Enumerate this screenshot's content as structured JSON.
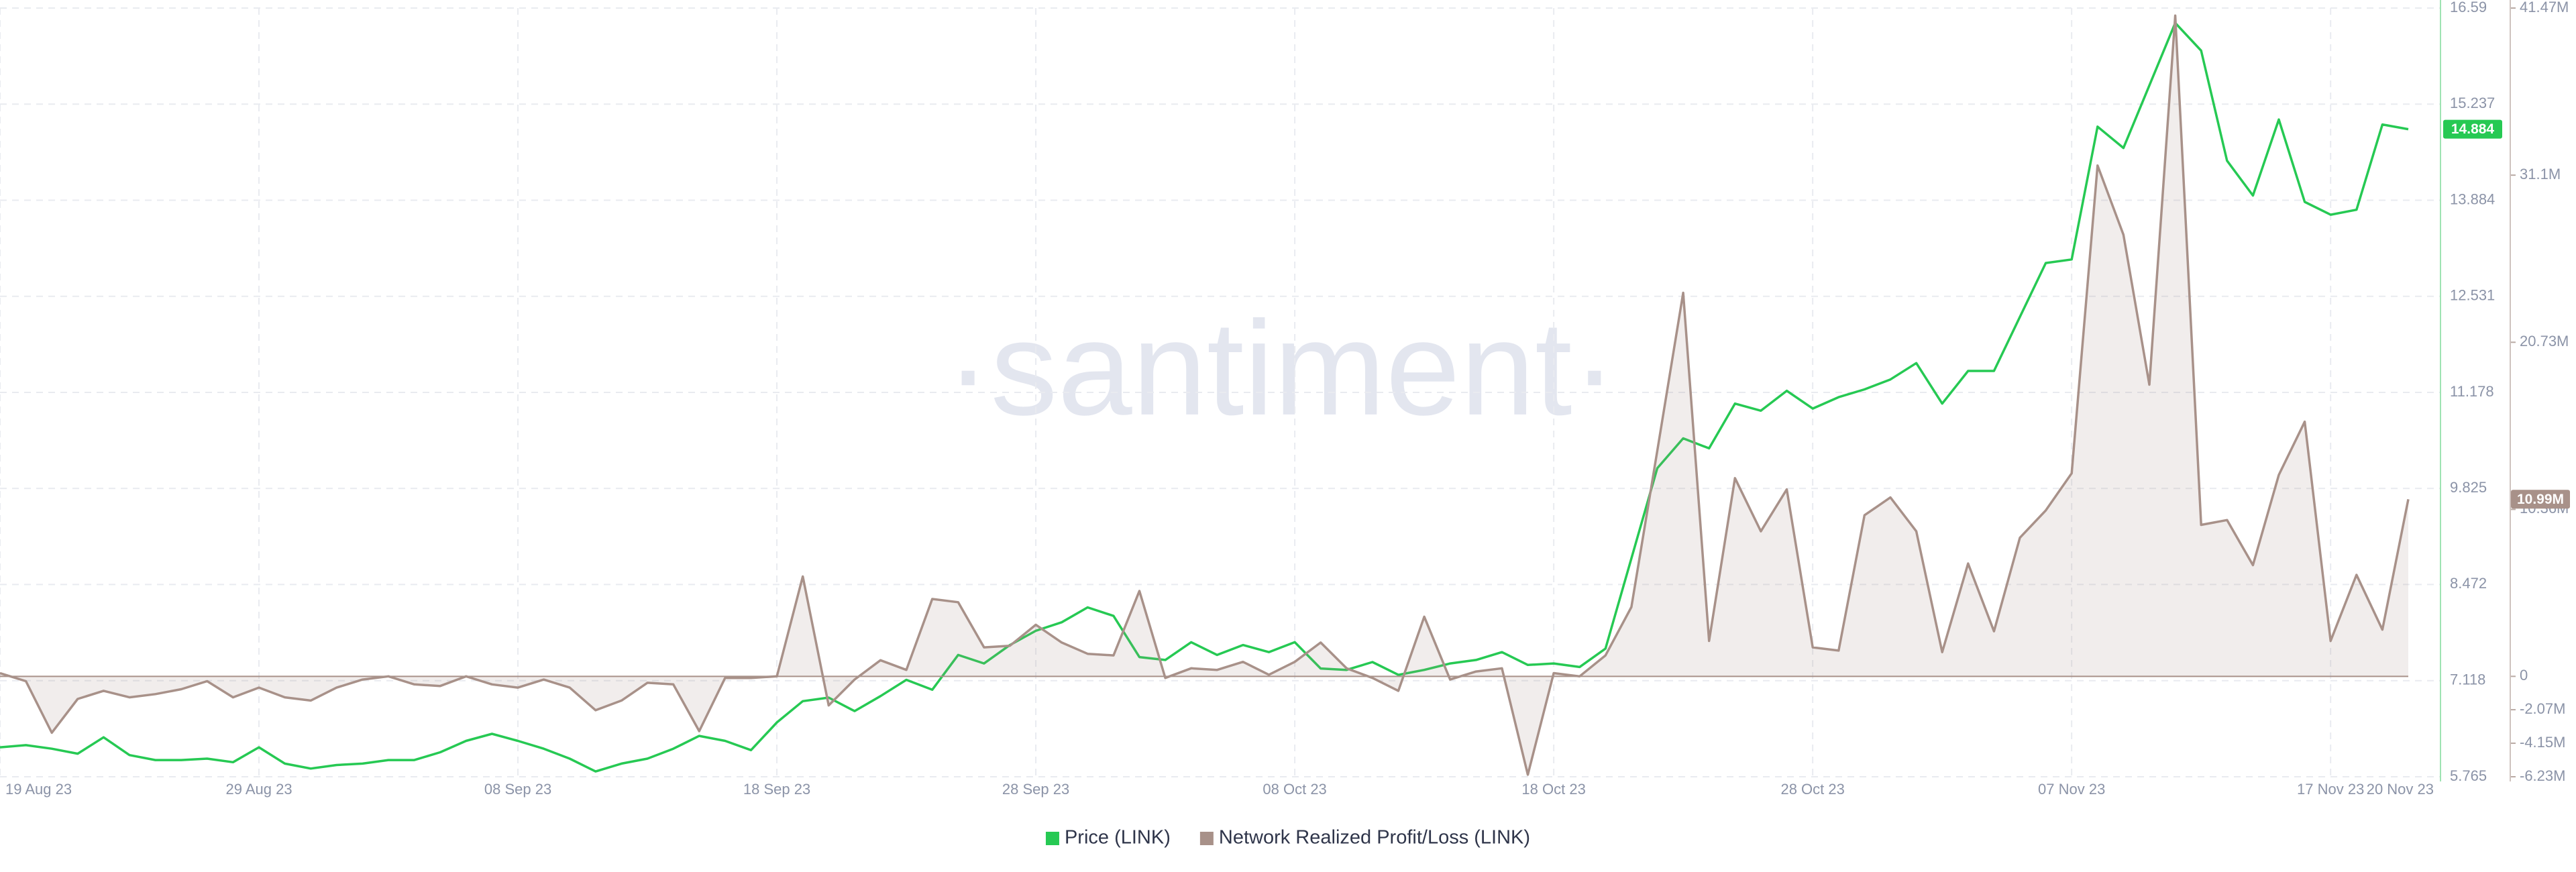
{
  "chart_data": {
    "type": "line",
    "watermark": "·santiment·",
    "x": [
      "2023-08-19",
      "2023-08-20",
      "2023-08-21",
      "2023-08-22",
      "2023-08-23",
      "2023-08-24",
      "2023-08-25",
      "2023-08-26",
      "2023-08-27",
      "2023-08-28",
      "2023-08-29",
      "2023-08-30",
      "2023-08-31",
      "2023-09-01",
      "2023-09-02",
      "2023-09-03",
      "2023-09-04",
      "2023-09-05",
      "2023-09-06",
      "2023-09-07",
      "2023-09-08",
      "2023-09-09",
      "2023-09-10",
      "2023-09-11",
      "2023-09-12",
      "2023-09-13",
      "2023-09-14",
      "2023-09-15",
      "2023-09-16",
      "2023-09-17",
      "2023-09-18",
      "2023-09-19",
      "2023-09-20",
      "2023-09-21",
      "2023-09-22",
      "2023-09-23",
      "2023-09-24",
      "2023-09-25",
      "2023-09-26",
      "2023-09-27",
      "2023-09-28",
      "2023-09-29",
      "2023-09-30",
      "2023-10-01",
      "2023-10-02",
      "2023-10-03",
      "2023-10-04",
      "2023-10-05",
      "2023-10-06",
      "2023-10-07",
      "2023-10-08",
      "2023-10-09",
      "2023-10-10",
      "2023-10-11",
      "2023-10-12",
      "2023-10-13",
      "2023-10-14",
      "2023-10-15",
      "2023-10-16",
      "2023-10-17",
      "2023-10-18",
      "2023-10-19",
      "2023-10-20",
      "2023-10-21",
      "2023-10-22",
      "2023-10-23",
      "2023-10-24",
      "2023-10-25",
      "2023-10-26",
      "2023-10-27",
      "2023-10-28",
      "2023-10-29",
      "2023-10-30",
      "2023-10-31",
      "2023-11-01",
      "2023-11-02",
      "2023-11-03",
      "2023-11-04",
      "2023-11-05",
      "2023-11-06",
      "2023-11-07",
      "2023-11-08",
      "2023-11-09",
      "2023-11-10",
      "2023-11-11",
      "2023-11-12",
      "2023-11-13",
      "2023-11-14",
      "2023-11-15",
      "2023-11-16",
      "2023-11-17",
      "2023-11-18",
      "2023-11-19",
      "2023-11-20"
    ],
    "xticks": [
      {
        "value": "2023-08-19",
        "label": "19 Aug 23"
      },
      {
        "value": "2023-08-29",
        "label": "29 Aug 23"
      },
      {
        "value": "2023-09-08",
        "label": "08 Sep 23"
      },
      {
        "value": "2023-09-18",
        "label": "18 Sep 23"
      },
      {
        "value": "2023-09-28",
        "label": "28 Sep 23"
      },
      {
        "value": "2023-10-08",
        "label": "08 Oct 23"
      },
      {
        "value": "2023-10-18",
        "label": "18 Oct 23"
      },
      {
        "value": "2023-10-28",
        "label": "28 Oct 23"
      },
      {
        "value": "2023-11-07",
        "label": "07 Nov 23"
      },
      {
        "value": "2023-11-17",
        "label": "17 Nov 23"
      },
      {
        "value": "2023-11-20",
        "label": "20 Nov 23"
      }
    ],
    "ylim": [
      5.765,
      16.59
    ],
    "yticks": [
      5.765,
      7.118,
      8.472,
      9.825,
      11.178,
      12.531,
      13.884,
      15.237,
      16.59
    ],
    "y2lim": [
      -6.23,
      41.47
    ],
    "y2ticks": [
      {
        "value": -6.23,
        "label": "-6.23M"
      },
      {
        "value": -4.15,
        "label": "-4.15M"
      },
      {
        "value": -2.07,
        "label": "-2.07M"
      },
      0,
      {
        "value": 10.36,
        "label": "10.36M"
      },
      {
        "value": 20.73,
        "label": "20.73M"
      },
      {
        "value": 31.1,
        "label": "31.1M"
      },
      {
        "value": 41.47,
        "label": "41.47M"
      }
    ],
    "grid": true,
    "legend": "bottom",
    "series": [
      {
        "name": "Price (LINK)",
        "color": "#26c953",
        "last_value_label": "14.884",
        "values": [
          6.18,
          6.21,
          6.16,
          6.09,
          6.32,
          6.07,
          6.0,
          6.0,
          6.02,
          5.97,
          6.18,
          5.95,
          5.88,
          5.93,
          5.95,
          6.0,
          6.0,
          6.11,
          6.27,
          6.37,
          6.27,
          6.16,
          6.02,
          5.84,
          5.95,
          6.02,
          6.16,
          6.34,
          6.27,
          6.14,
          6.53,
          6.83,
          6.88,
          6.69,
          6.9,
          7.13,
          6.99,
          7.48,
          7.36,
          7.62,
          7.82,
          7.94,
          8.15,
          8.03,
          7.45,
          7.41,
          7.66,
          7.48,
          7.62,
          7.52,
          7.66,
          7.29,
          7.27,
          7.38,
          7.2,
          7.27,
          7.36,
          7.41,
          7.52,
          7.34,
          7.36,
          7.31,
          7.57,
          8.84,
          10.11,
          10.53,
          10.39,
          11.02,
          10.92,
          11.2,
          10.95,
          11.11,
          11.22,
          11.36,
          11.59,
          11.02,
          11.48,
          11.48,
          12.24,
          13.0,
          13.05,
          14.92,
          14.62,
          15.5,
          16.38,
          15.99,
          14.44,
          13.95,
          15.02,
          13.86,
          13.68,
          13.75,
          14.95,
          14.884
        ]
      },
      {
        "name": "Network Realized Profit/Loss (LINK)",
        "color": "#a89189",
        "axis": "y2",
        "last_value_label": "10.99M",
        "values": [
          0.2,
          -0.3,
          -3.5,
          -1.4,
          -0.9,
          -1.3,
          -1.1,
          -0.8,
          -0.3,
          -1.3,
          -0.7,
          -1.3,
          -1.5,
          -0.7,
          -0.2,
          0,
          -0.5,
          -0.6,
          0,
          -0.5,
          -0.7,
          -0.2,
          -0.7,
          -2.1,
          -1.5,
          -0.4,
          -0.5,
          -3.4,
          -0.1,
          -0.1,
          0,
          6.2,
          -1.8,
          -0.2,
          1.0,
          0.4,
          4.8,
          4.6,
          1.8,
          1.9,
          3.2,
          2.1,
          1.4,
          1.3,
          5.3,
          -0.1,
          0.5,
          0.4,
          0.9,
          0.1,
          0.9,
          2.1,
          0.5,
          -0.1,
          -0.9,
          3.7,
          -0.2,
          0.3,
          0.5,
          -6.1,
          0.2,
          0,
          1.3,
          4.3,
          14.0,
          23.8,
          2.2,
          12.3,
          9.0,
          11.6,
          1.8,
          1.6,
          10.0,
          11.1,
          9.0,
          1.5,
          7.0,
          2.8,
          8.6,
          10.3,
          12.6,
          31.7,
          27.4,
          18.1,
          41.0,
          9.4,
          9.7,
          6.9,
          12.5,
          15.8,
          2.2,
          6.3,
          2.9,
          10.99
        ]
      }
    ]
  }
}
